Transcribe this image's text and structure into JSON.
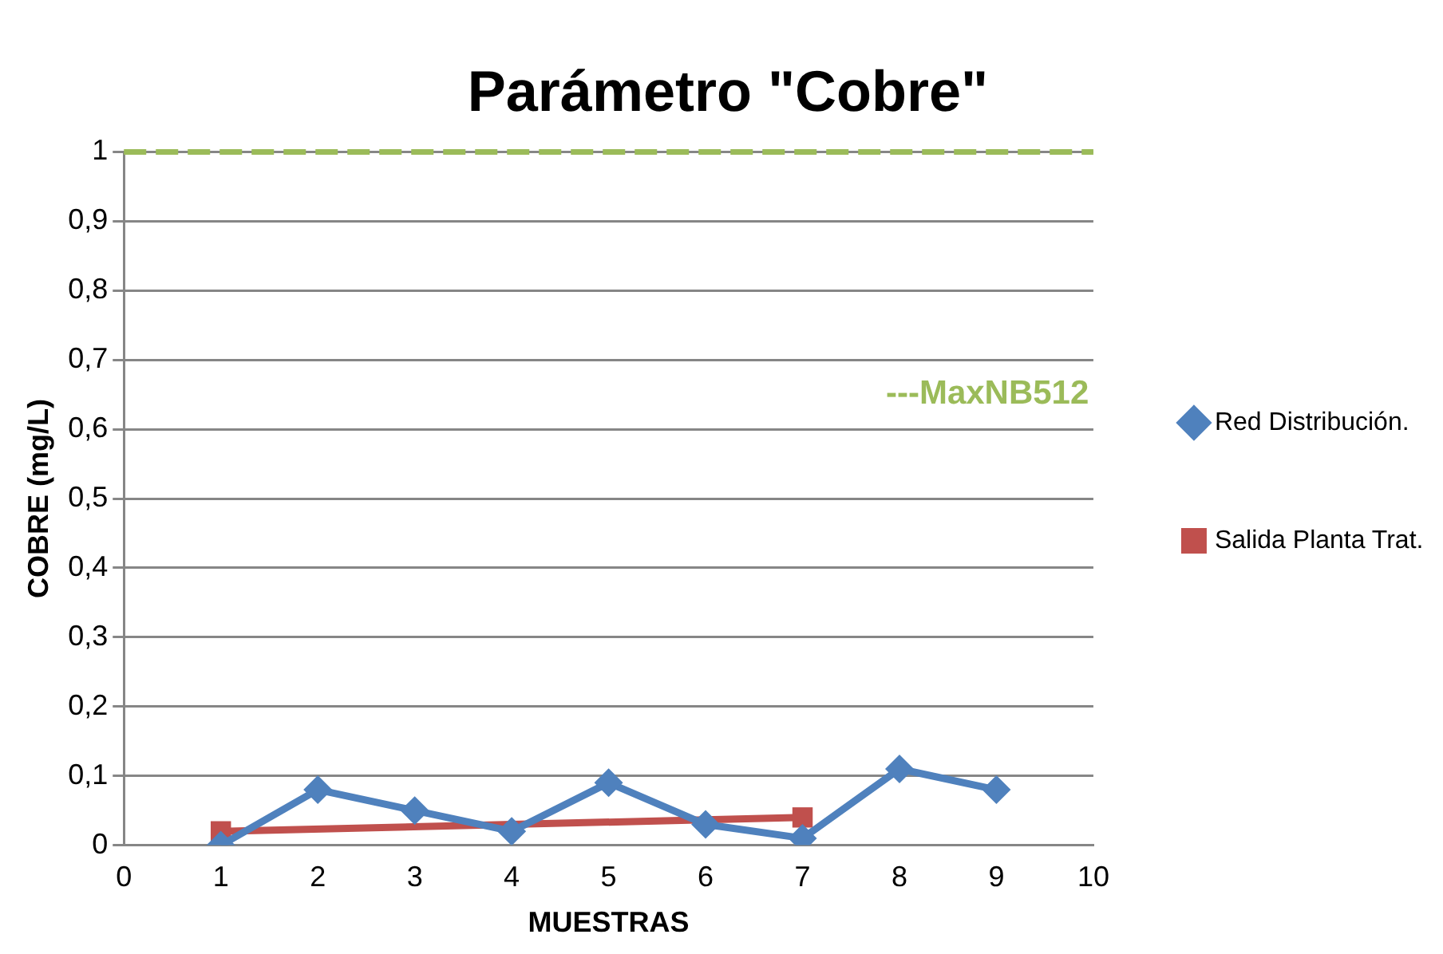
{
  "chart_data": {
    "type": "line",
    "title": "Parámetro \"Cobre\"",
    "xlabel": "MUESTRAS",
    "ylabel": "COBRE (mg/L)",
    "xlim": [
      0,
      10
    ],
    "xticks": [
      0,
      1,
      2,
      3,
      4,
      5,
      6,
      7,
      8,
      9,
      10
    ],
    "ylim": [
      0,
      1
    ],
    "yticks": [
      {
        "value": 0,
        "label": "0"
      },
      {
        "value": 0.1,
        "label": "0,1"
      },
      {
        "value": 0.2,
        "label": "0,2"
      },
      {
        "value": 0.3,
        "label": "0,3"
      },
      {
        "value": 0.4,
        "label": "0,4"
      },
      {
        "value": 0.5,
        "label": "0,5"
      },
      {
        "value": 0.6,
        "label": "0,6"
      },
      {
        "value": 0.7,
        "label": "0,7"
      },
      {
        "value": 0.8,
        "label": "0,8"
      },
      {
        "value": 0.9,
        "label": "0,9"
      },
      {
        "value": 1,
        "label": "1"
      }
    ],
    "grid": "y",
    "legend": "right",
    "series": [
      {
        "name": "Red Distribución.",
        "color": "#4f81bd",
        "marker": "diamond",
        "x": [
          1,
          2,
          3,
          4,
          5,
          6,
          7,
          8,
          9
        ],
        "values": [
          0,
          0.08,
          0.05,
          0.02,
          0.09,
          0.03,
          0.01,
          0.11,
          0.08
        ]
      },
      {
        "name": "Salida Planta Trat.",
        "color": "#c0504d",
        "marker": "square",
        "x": [
          1,
          7
        ],
        "values": [
          0.02,
          0.04
        ]
      }
    ],
    "ref_lines": [
      {
        "axis": "y",
        "value": 1,
        "label": "---MaxNB512",
        "color": "#9bbb59",
        "line_style": "dashed"
      }
    ]
  }
}
